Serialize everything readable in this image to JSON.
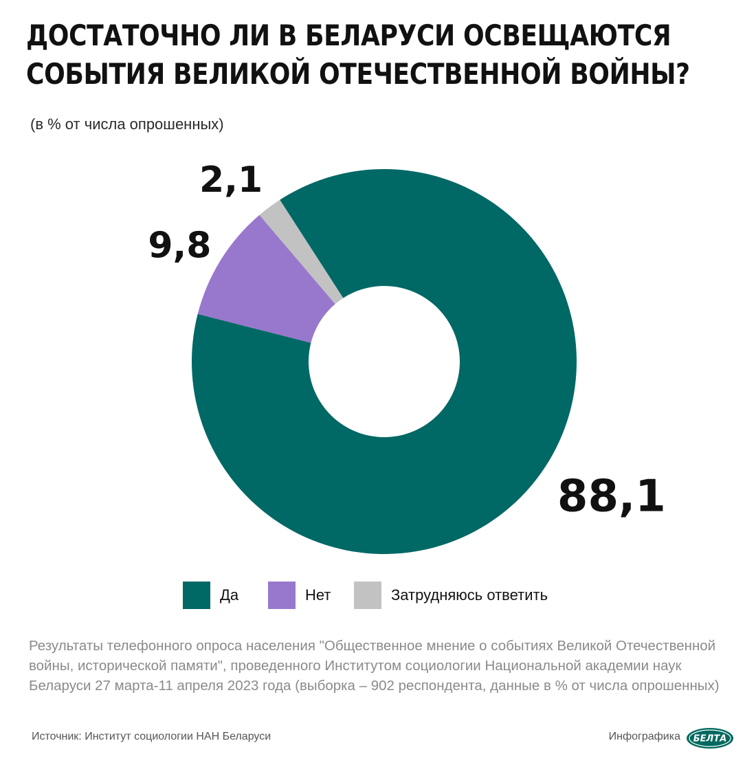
{
  "title_line1": "ДОСТАТОЧНО ЛИ В БЕЛАРУСИ ОСВЕЩАЮТСЯ",
  "title_line2": "СОБЫТИЯ ВЕЛИКОЙ ОТЕЧЕСТВЕННОЙ ВОЙНЫ?",
  "subtitle": "(в % от числа опрошенных)",
  "chart_data": {
    "type": "pie",
    "variant": "donut",
    "title": "ДОСТАТОЧНО ЛИ В БЕЛАРУСИ ОСВЕЩАЮТСЯ СОБЫТИЯ ВЕЛИКОЙ ОТЕЧЕСТВЕННОЙ ВОЙНЫ?",
    "subtitle": "(в % от числа опрошенных)",
    "categories": [
      "Да",
      "Нет",
      "Затрудняюсь ответить"
    ],
    "values": [
      88.1,
      9.8,
      2.1
    ],
    "value_labels": [
      "88,1",
      "9,8",
      "2,1"
    ],
    "colors": [
      "#006865",
      "#9878cc",
      "#c2c2c2"
    ],
    "legend_position": "bottom"
  },
  "legend": [
    {
      "label": "Да",
      "color": "#006865"
    },
    {
      "label": "Нет",
      "color": "#9878cc"
    },
    {
      "label": "Затрудняюсь ответить",
      "color": "#c2c2c2"
    }
  ],
  "note": "Результаты телефонного опроса населения \"Общественное мнение о событиях Великой Отечественной войны, исторической памяти\", проведенного Институтом социологии Национальной академии наук Беларуси 27 марта-11 апреля 2023 года (выборка –  902 респондента, данные в % от числа опрошенных)",
  "source": "Источник: Институт социологии НАН Беларуси",
  "credit": "Инфографика",
  "logo_text": "БЕЛТА",
  "colors": {
    "logo": "#00685f"
  }
}
